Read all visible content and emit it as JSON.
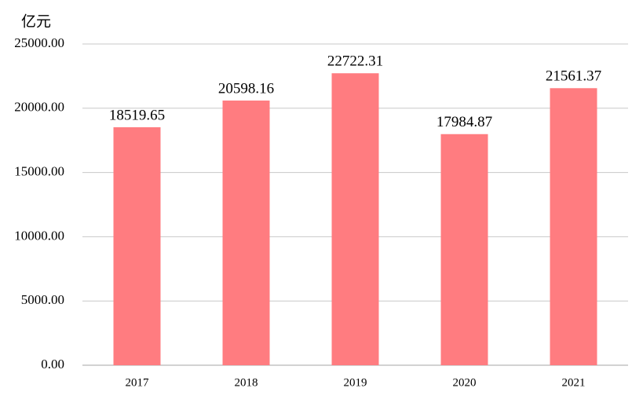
{
  "chart_data": {
    "type": "bar",
    "y_label": "亿元",
    "categories": [
      "2017",
      "2018",
      "2019",
      "2020",
      "2021"
    ],
    "values": [
      18519.65,
      20598.16,
      22722.31,
      17984.87,
      21561.37
    ],
    "color": "#ff7c80",
    "ylim": [
      0,
      25000
    ],
    "yticks": [
      {
        "value": 0,
        "label": "0.00"
      },
      {
        "value": 5000,
        "label": "5000.00"
      },
      {
        "value": 10000,
        "label": "10000.00"
      },
      {
        "value": 15000,
        "label": "15000.00"
      },
      {
        "value": 20000,
        "label": "20000.00"
      },
      {
        "value": 25000,
        "label": "25000.00"
      }
    ],
    "grid": true
  }
}
